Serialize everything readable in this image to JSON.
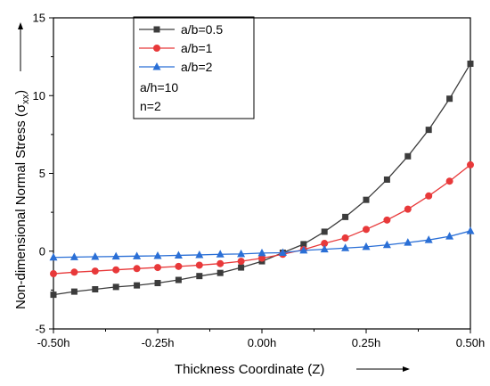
{
  "chart_data": {
    "type": "line",
    "title": "",
    "xlabel": "Thickness Coordinate (Z)",
    "ylabel_main": "Non-dimensional Normal Stress (σ",
    "ylabel_sub": "xx",
    "ylabel_close": ")",
    "xlim": [
      -0.5,
      0.5
    ],
    "ylim": [
      -5,
      15
    ],
    "x_ticks": [
      {
        "value": -0.5,
        "label": "-0.50h"
      },
      {
        "value": -0.25,
        "label": "-0.25h"
      },
      {
        "value": 0.0,
        "label": "0.00h"
      },
      {
        "value": 0.25,
        "label": "0.25h"
      },
      {
        "value": 0.5,
        "label": "0.50h"
      }
    ],
    "y_ticks": [
      {
        "value": -5,
        "label": "-5"
      },
      {
        "value": 0,
        "label": "0"
      },
      {
        "value": 5,
        "label": "5"
      },
      {
        "value": 10,
        "label": "10"
      },
      {
        "value": 15,
        "label": "15"
      }
    ],
    "x": [
      -0.5,
      -0.45,
      -0.4,
      -0.35,
      -0.3,
      -0.25,
      -0.2,
      -0.15,
      -0.1,
      -0.05,
      0.0,
      0.05,
      0.1,
      0.15,
      0.2,
      0.25,
      0.3,
      0.35,
      0.4,
      0.45,
      0.5
    ],
    "series": [
      {
        "name": "a/b=0.5",
        "color": "#3c3c3c",
        "marker": "square",
        "values": [
          -2.8,
          -2.6,
          -2.45,
          -2.3,
          -2.2,
          -2.05,
          -1.85,
          -1.6,
          -1.4,
          -1.05,
          -0.65,
          -0.1,
          0.45,
          1.25,
          2.2,
          3.3,
          4.6,
          6.1,
          7.8,
          9.8,
          12.05
        ]
      },
      {
        "name": "a/b=1",
        "color": "#e8393a",
        "marker": "circle",
        "values": [
          -1.45,
          -1.35,
          -1.28,
          -1.2,
          -1.12,
          -1.05,
          -0.98,
          -0.9,
          -0.8,
          -0.65,
          -0.45,
          -0.2,
          0.1,
          0.5,
          0.85,
          1.4,
          2.0,
          2.7,
          3.55,
          4.5,
          5.55
        ]
      },
      {
        "name": "a/b=2",
        "color": "#2a6fd6",
        "marker": "triangle",
        "values": [
          -0.4,
          -0.38,
          -0.36,
          -0.34,
          -0.32,
          -0.3,
          -0.27,
          -0.24,
          -0.2,
          -0.18,
          -0.12,
          -0.1,
          0.05,
          0.12,
          0.2,
          0.28,
          0.4,
          0.55,
          0.72,
          0.95,
          1.3
        ]
      }
    ],
    "annotations": [
      "a/h=10",
      "n=2"
    ],
    "legend_position": "top-left",
    "grid": false
  }
}
